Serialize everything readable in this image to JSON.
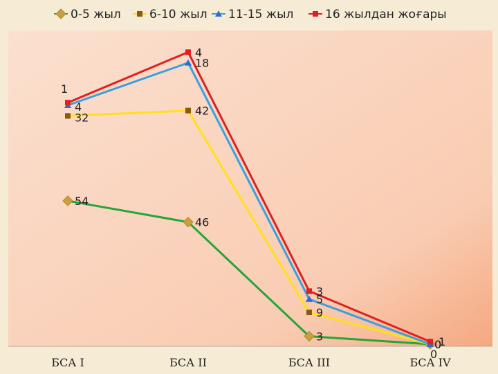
{
  "chart_data": {
    "type": "stacked-line",
    "categories": [
      "БСА I",
      "БСА II",
      "БСА III",
      "БСА IV"
    ],
    "series": [
      {
        "name": "0-5 жыл",
        "values": [
          54,
          46,
          3,
          0
        ],
        "color": "#22a63a",
        "marker": "diamond",
        "marker_color": "#c8a040"
      },
      {
        "name": "6-10 жыл",
        "values": [
          32,
          42,
          9,
          0
        ],
        "color": "#ffe01a",
        "marker": "square",
        "marker_color": "#8a5a10"
      },
      {
        "name": "11-15 жыл",
        "values": [
          4,
          18,
          5,
          0
        ],
        "color": "#3aa0dd",
        "marker": "triangle",
        "marker_color": "#2a6fd0"
      },
      {
        "name": "16 жылдан жоғары",
        "values": [
          1,
          4,
          3,
          1
        ],
        "color": "#e02020",
        "marker": "square",
        "marker_color": "#e02020"
      }
    ],
    "stacked": true,
    "ylim": [
      0,
      120
    ],
    "legend_position": "top",
    "grid": false
  }
}
